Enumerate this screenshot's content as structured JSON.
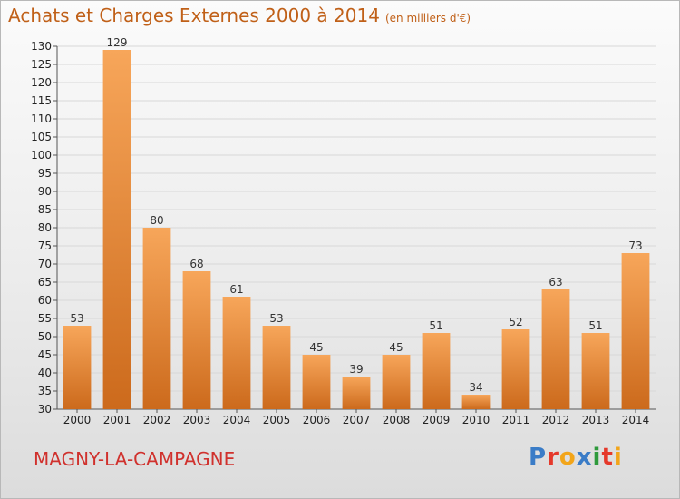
{
  "header": {
    "title": "Achats et Charges Externes 2000 à 2014",
    "unit": "(en milliers d'€)"
  },
  "footer": {
    "commune": "MAGNY-LA-CAMPAGNE",
    "logo": "Proxiti",
    "logo_colors": [
      "#3a7cc7",
      "#e5392b",
      "#f2a51a",
      "#3a7cc7",
      "#2e9a3c",
      "#e5392b",
      "#f2a51a"
    ]
  },
  "colors": {
    "bar_light": "#f7a65a",
    "bar_dark": "#cc6a1c",
    "title": "#c06018",
    "commune": "#d0312d",
    "grid": "#d8d8d8"
  },
  "chart_data": {
    "type": "bar",
    "title": "Achats et Charges Externes 2000 à 2014",
    "categories": [
      "2000",
      "2001",
      "2002",
      "2003",
      "2004",
      "2005",
      "2006",
      "2007",
      "2008",
      "2009",
      "2010",
      "2011",
      "2012",
      "2013",
      "2014"
    ],
    "values": [
      53,
      129,
      80,
      68,
      61,
      53,
      45,
      39,
      45,
      51,
      34,
      52,
      63,
      51,
      73
    ],
    "ylim": [
      30,
      130
    ],
    "ytick_step": 5,
    "grid": true,
    "xlabel": "",
    "ylabel": ""
  }
}
